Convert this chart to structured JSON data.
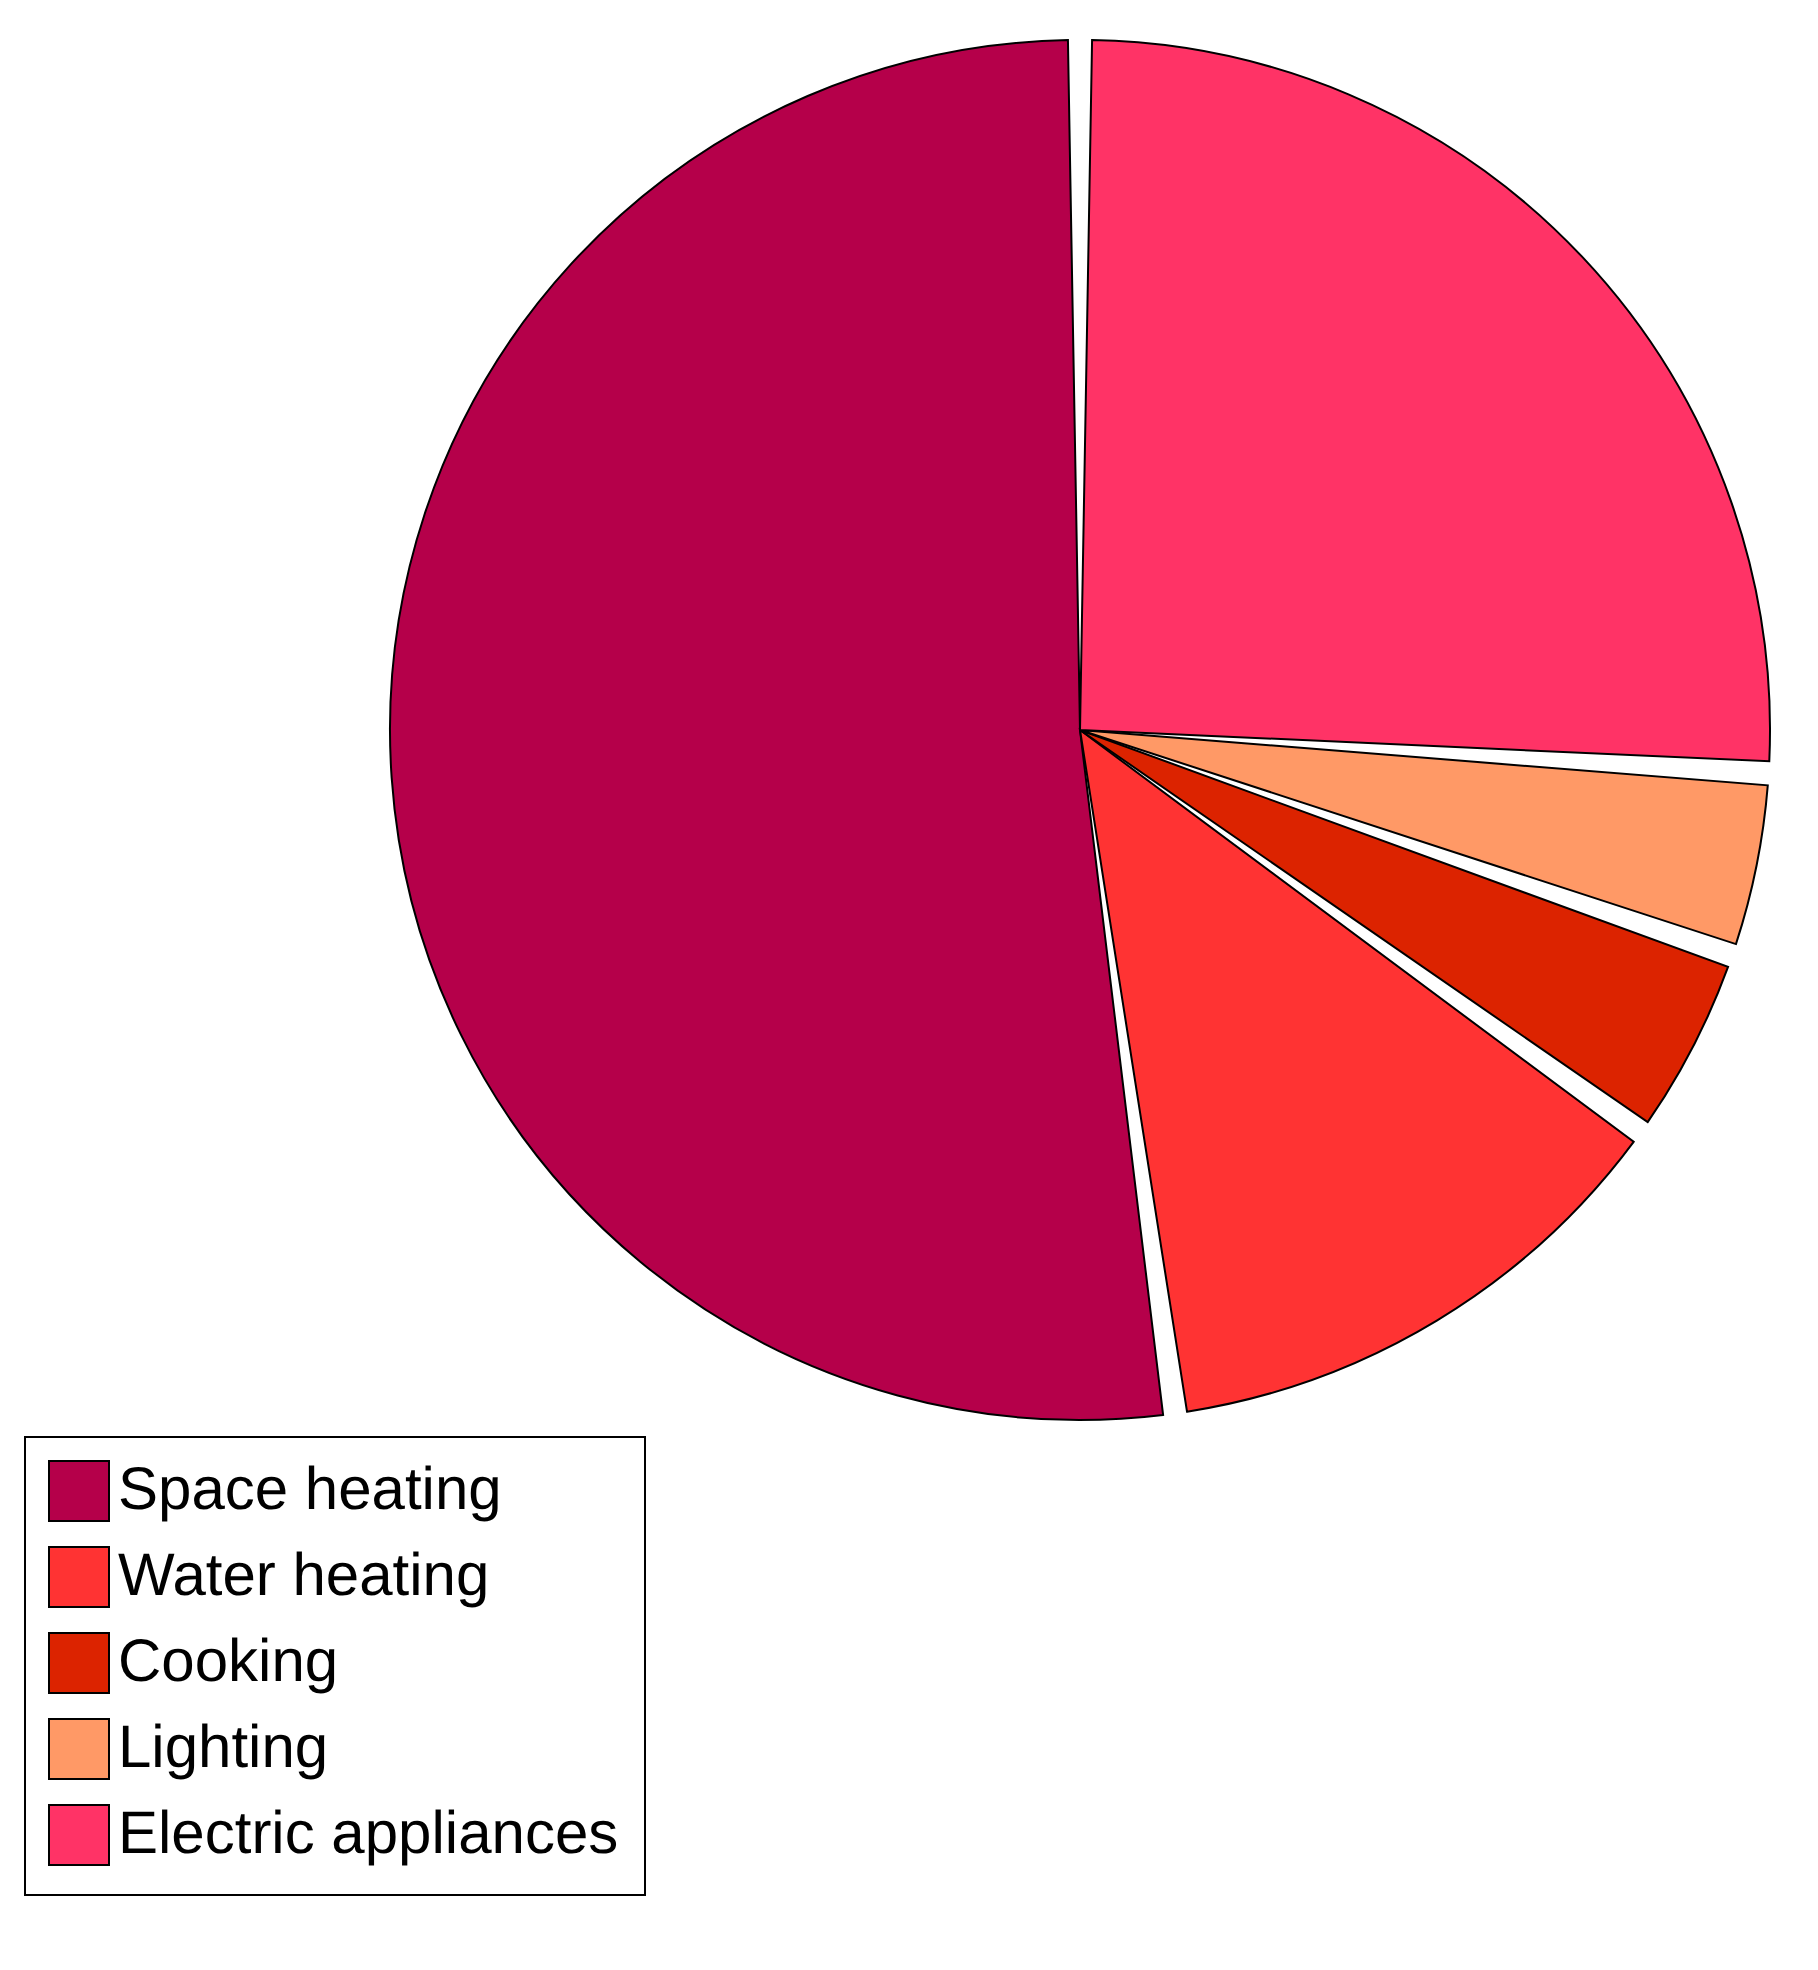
{
  "chart_data": {
    "type": "pie",
    "categories": [
      "Space heating",
      "Water heating",
      "Cooking",
      "Lighting",
      "Electric appliances"
    ],
    "values": [
      52.2,
      12.9,
      4.6,
      4.3,
      26.0
    ],
    "colors": [
      "#b5004a",
      "#ff3333",
      "#dc2300",
      "#ff9966",
      "#ff3366"
    ],
    "legend": "bottom left"
  }
}
